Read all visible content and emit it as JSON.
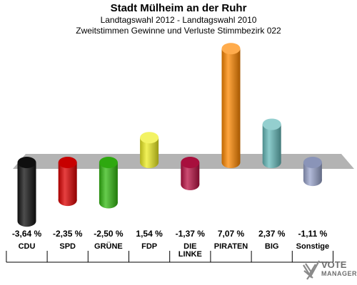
{
  "chart_data": {
    "type": "bar",
    "title": "Stadt Mülheim an der Ruhr",
    "subtitle": "Landtagswahl 2012 - Landtagswahl 2010",
    "subtitle2": "Zweitstimmen Gewinne und Verluste Stimmbezirk 022",
    "categories": [
      "CDU",
      "SPD",
      "GRÜNE",
      "FDP",
      "DIE LINKE",
      "PIRATEN",
      "BIG",
      "Sonstige"
    ],
    "values": [
      -3.64,
      -2.35,
      -2.5,
      1.54,
      -1.37,
      7.07,
      2.37,
      -1.11
    ],
    "value_labels": [
      "-3,64 %",
      "-2,35 %",
      "-2,50 %",
      "1,54 %",
      "-1,37 %",
      "7,07 %",
      "2,37 %",
      "-1,11 %"
    ],
    "colors": [
      "#111111",
      "#dd0000",
      "#33bb11",
      "#eeee22",
      "#bb1144",
      "#ff8800",
      "#66bbbb",
      "#99a4cc"
    ],
    "grid": false
  },
  "logo": {
    "text": "VOTE",
    "subtext": "MANAGER",
    "icon": "vote-check-icon"
  }
}
